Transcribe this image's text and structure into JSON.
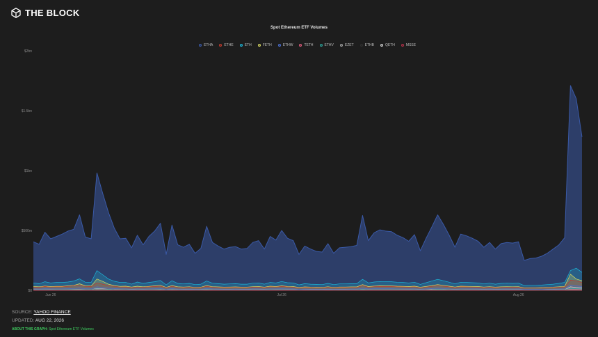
{
  "brand": {
    "name": "THE BLOCK",
    "icon": "block-cube-icon"
  },
  "footer": {
    "source_label": "SOURCE:",
    "source_value": "YAHOO FINANCE",
    "updated_label": "UPDATED:",
    "updated_value": "AUG 22, 2026",
    "about_label": "ABOUT THIS GRAPH:",
    "about_value": "Spot Ethereum ETF Volumes"
  },
  "chart_data": {
    "type": "area",
    "title": "Spot Ethereum ETF Volumes",
    "xlabel": "",
    "ylabel": "",
    "y_tick_labels": [
      "$0",
      "$500m",
      "$1bn",
      "$1.5bn",
      "$2bn"
    ],
    "y_tick_values": [
      0,
      500,
      1000,
      1500,
      2000
    ],
    "ylim": [
      0,
      2000
    ],
    "x_tick_labels": [
      "Jun 26",
      "Jul 26",
      "Aug 26"
    ],
    "x_tick_index": [
      3,
      43,
      84
    ],
    "grid": false,
    "legend_position": "top",
    "series": [
      {
        "name": "ETHA",
        "color": "#3a5aa8",
        "values": [
          405,
          385,
          485,
          430,
          450,
          470,
          495,
          510,
          630,
          445,
          430,
          980,
          810,
          650,
          520,
          430,
          435,
          355,
          460,
          380,
          450,
          495,
          560,
          300,
          545,
          380,
          360,
          385,
          310,
          350,
          535,
          400,
          370,
          345,
          360,
          365,
          345,
          350,
          400,
          415,
          345,
          450,
          420,
          500,
          435,
          415,
          300,
          370,
          345,
          325,
          320,
          390,
          310,
          355,
          360,
          365,
          375,
          625,
          415,
          480,
          505,
          495,
          490,
          460,
          440,
          410,
          465,
          330,
          435,
          530,
          630,
          550,
          460,
          360,
          470,
          455,
          435,
          410,
          360,
          400,
          345,
          390,
          400,
          395,
          405,
          250,
          265,
          270,
          285,
          310,
          345,
          380,
          440,
          1710,
          1600,
          1280
        ]
      },
      {
        "name": "ETHE",
        "color": "#c0392b",
        "values": [
          28,
          26,
          32,
          28,
          30,
          30,
          34,
          38,
          45,
          33,
          32,
          62,
          52,
          40,
          34,
          28,
          29,
          24,
          28,
          26,
          30,
          32,
          36,
          22,
          34,
          25,
          24,
          26,
          22,
          24,
          34,
          27,
          25,
          23,
          24,
          25,
          23,
          24,
          27,
          28,
          23,
          30,
          28,
          33,
          29,
          27,
          20,
          24,
          23,
          22,
          21,
          26,
          21,
          24,
          24,
          25,
          25,
          40,
          27,
          31,
          33,
          32,
          32,
          30,
          29,
          27,
          30,
          22,
          28,
          34,
          40,
          35,
          30,
          24,
          30,
          29,
          28,
          27,
          24,
          26,
          23,
          25,
          26,
          26,
          26,
          18,
          19,
          19,
          20,
          22,
          24,
          26,
          29,
          85,
          80,
          65
        ]
      },
      {
        "name": "ETH",
        "color": "#1bb6d8",
        "values": [
          62,
          56,
          72,
          62,
          66,
          66,
          70,
          78,
          96,
          68,
          66,
          165,
          130,
          95,
          76,
          66,
          66,
          52,
          70,
          58,
          66,
          72,
          82,
          46,
          80,
          58,
          54,
          58,
          48,
          52,
          78,
          60,
          56,
          52,
          54,
          56,
          52,
          52,
          60,
          62,
          52,
          66,
          62,
          74,
          64,
          62,
          46,
          56,
          52,
          50,
          48,
          58,
          48,
          54,
          54,
          56,
          56,
          92,
          62,
          70,
          74,
          72,
          72,
          68,
          66,
          62,
          68,
          50,
          64,
          78,
          92,
          80,
          68,
          54,
          68,
          66,
          64,
          62,
          54,
          60,
          52,
          58,
          60,
          58,
          60,
          40,
          42,
          42,
          44,
          48,
          52,
          58,
          66,
          165,
          185,
          150
        ]
      },
      {
        "name": "FETH",
        "color": "#d7d760",
        "values": [
          32,
          30,
          36,
          32,
          34,
          34,
          38,
          42,
          55,
          38,
          36,
          95,
          75,
          52,
          40,
          34,
          35,
          28,
          35,
          30,
          34,
          38,
          42,
          25,
          40,
          30,
          28,
          30,
          25,
          27,
          40,
          31,
          29,
          27,
          28,
          29,
          27,
          27,
          31,
          32,
          27,
          35,
          32,
          38,
          33,
          32,
          24,
          29,
          27,
          26,
          25,
          30,
          25,
          28,
          28,
          29,
          29,
          48,
          32,
          36,
          38,
          37,
          37,
          35,
          34,
          32,
          35,
          26,
          33,
          40,
          48,
          42,
          35,
          28,
          35,
          34,
          33,
          32,
          28,
          31,
          27,
          30,
          31,
          30,
          31,
          21,
          22,
          22,
          23,
          25,
          27,
          30,
          34,
          135,
          95,
          80
        ]
      },
      {
        "name": "ETHW",
        "color": "#4a6fd0",
        "values": [
          12,
          11,
          14,
          12,
          13,
          13,
          14,
          16,
          20,
          14,
          13,
          30,
          24,
          18,
          15,
          13,
          13,
          10,
          13,
          11,
          13,
          14,
          16,
          9,
          15,
          11,
          10,
          11,
          9,
          10,
          15,
          12,
          11,
          10,
          10,
          11,
          10,
          10,
          12,
          12,
          10,
          13,
          12,
          14,
          12,
          12,
          9,
          11,
          10,
          10,
          9,
          11,
          9,
          10,
          10,
          11,
          11,
          18,
          12,
          14,
          14,
          14,
          14,
          13,
          13,
          12,
          13,
          10,
          12,
          15,
          18,
          16,
          13,
          10,
          13,
          13,
          12,
          12,
          10,
          12,
          10,
          11,
          12,
          11,
          12,
          8,
          8,
          8,
          9,
          9,
          10,
          11,
          13,
          45,
          38,
          32
        ]
      },
      {
        "name": "TETH",
        "color": "#e05a7a",
        "values": [
          3,
          3,
          3,
          3,
          3,
          3,
          3,
          4,
          5,
          3,
          3,
          7,
          6,
          4,
          3,
          3,
          3,
          2,
          3,
          3,
          3,
          3,
          4,
          2,
          4,
          3,
          2,
          3,
          2,
          2,
          4,
          3,
          3,
          2,
          2,
          3,
          2,
          2,
          3,
          3,
          2,
          3,
          3,
          3,
          3,
          3,
          2,
          3,
          2,
          2,
          2,
          3,
          2,
          2,
          2,
          3,
          3,
          4,
          3,
          3,
          3,
          3,
          3,
          3,
          3,
          3,
          3,
          2,
          3,
          4,
          4,
          4,
          3,
          2,
          3,
          3,
          3,
          3,
          2,
          3,
          2,
          3,
          3,
          3,
          3,
          2,
          2,
          2,
          2,
          2,
          2,
          3,
          3,
          9,
          8,
          6
        ]
      },
      {
        "name": "ETHV",
        "color": "#2aa198",
        "values": [
          5,
          5,
          6,
          5,
          6,
          6,
          6,
          7,
          8,
          6,
          6,
          13,
          10,
          8,
          6,
          5,
          6,
          4,
          6,
          5,
          6,
          6,
          7,
          4,
          7,
          5,
          4,
          5,
          4,
          4,
          7,
          5,
          5,
          4,
          4,
          5,
          4,
          4,
          5,
          5,
          4,
          6,
          5,
          6,
          5,
          5,
          4,
          5,
          4,
          4,
          4,
          5,
          4,
          4,
          4,
          5,
          5,
          8,
          5,
          6,
          6,
          6,
          6,
          6,
          5,
          5,
          6,
          4,
          5,
          6,
          8,
          7,
          6,
          4,
          6,
          5,
          5,
          5,
          4,
          5,
          4,
          5,
          5,
          5,
          5,
          3,
          3,
          3,
          4,
          4,
          4,
          5,
          5,
          16,
          14,
          11
        ]
      },
      {
        "name": "EZET",
        "color": "#a0a0a0",
        "values": [
          2,
          2,
          2,
          2,
          2,
          2,
          2,
          3,
          3,
          2,
          2,
          5,
          4,
          3,
          2,
          2,
          2,
          2,
          2,
          2,
          2,
          2,
          3,
          1,
          3,
          2,
          2,
          2,
          1,
          2,
          3,
          2,
          2,
          2,
          2,
          2,
          2,
          2,
          2,
          2,
          2,
          2,
          2,
          2,
          2,
          2,
          1,
          2,
          2,
          2,
          1,
          2,
          1,
          2,
          2,
          2,
          2,
          3,
          2,
          2,
          2,
          2,
          2,
          2,
          2,
          2,
          2,
          2,
          2,
          3,
          3,
          3,
          2,
          2,
          2,
          2,
          2,
          2,
          2,
          2,
          2,
          2,
          2,
          2,
          2,
          1,
          1,
          1,
          1,
          1,
          2,
          2,
          2,
          6,
          5,
          4
        ]
      },
      {
        "name": "ETHB",
        "color": "#2f2f2f",
        "values": [
          0,
          0,
          0,
          0,
          0,
          0,
          0,
          0,
          0,
          0,
          0,
          0,
          0,
          0,
          0,
          0,
          0,
          0,
          0,
          0,
          0,
          0,
          0,
          0,
          0,
          0,
          0,
          0,
          0,
          0,
          0,
          0,
          0,
          0,
          0,
          0,
          0,
          0,
          0,
          0,
          0,
          0,
          0,
          0,
          0,
          0,
          0,
          0,
          0,
          0,
          0,
          0,
          0,
          0,
          0,
          0,
          0,
          0,
          0,
          0,
          0,
          0,
          0,
          0,
          0,
          0,
          0,
          0,
          0,
          0,
          0,
          0,
          0,
          0,
          0,
          0,
          0,
          0,
          0,
          0,
          0,
          0,
          0,
          0,
          0,
          0,
          0,
          0,
          0,
          0,
          0,
          0,
          0,
          0,
          0,
          0
        ]
      },
      {
        "name": "QETH",
        "color": "#d0d0d0",
        "values": [
          6,
          5,
          7,
          6,
          6,
          6,
          7,
          8,
          10,
          7,
          6,
          16,
          12,
          9,
          7,
          6,
          6,
          5,
          7,
          6,
          6,
          7,
          8,
          4,
          8,
          6,
          5,
          6,
          5,
          5,
          8,
          6,
          5,
          5,
          5,
          5,
          5,
          5,
          6,
          6,
          5,
          6,
          6,
          7,
          6,
          6,
          4,
          5,
          5,
          5,
          5,
          6,
          5,
          5,
          5,
          5,
          5,
          9,
          6,
          7,
          7,
          7,
          7,
          7,
          6,
          6,
          7,
          5,
          6,
          8,
          9,
          8,
          7,
          5,
          7,
          6,
          6,
          6,
          5,
          6,
          5,
          6,
          6,
          6,
          6,
          4,
          4,
          4,
          4,
          5,
          5,
          6,
          6,
          30,
          24,
          20
        ]
      },
      {
        "name": "MSSE",
        "color": "#b03048",
        "values": [
          0,
          0,
          0,
          0,
          0,
          0,
          0,
          0,
          0,
          0,
          0,
          0,
          0,
          0,
          0,
          0,
          0,
          0,
          0,
          0,
          0,
          0,
          0,
          0,
          0,
          0,
          0,
          0,
          0,
          0,
          0,
          0,
          0,
          0,
          0,
          0,
          0,
          0,
          0,
          0,
          0,
          0,
          0,
          0,
          0,
          0,
          0,
          0,
          0,
          0,
          0,
          0,
          0,
          0,
          0,
          0,
          0,
          0,
          0,
          0,
          0,
          0,
          0,
          0,
          0,
          0,
          0,
          0,
          0,
          0,
          0,
          0,
          0,
          0,
          0,
          0,
          0,
          0,
          0,
          0,
          0,
          0,
          0,
          0,
          0,
          0,
          0,
          0,
          0,
          0,
          0,
          0,
          0,
          0,
          0,
          0
        ]
      }
    ]
  }
}
